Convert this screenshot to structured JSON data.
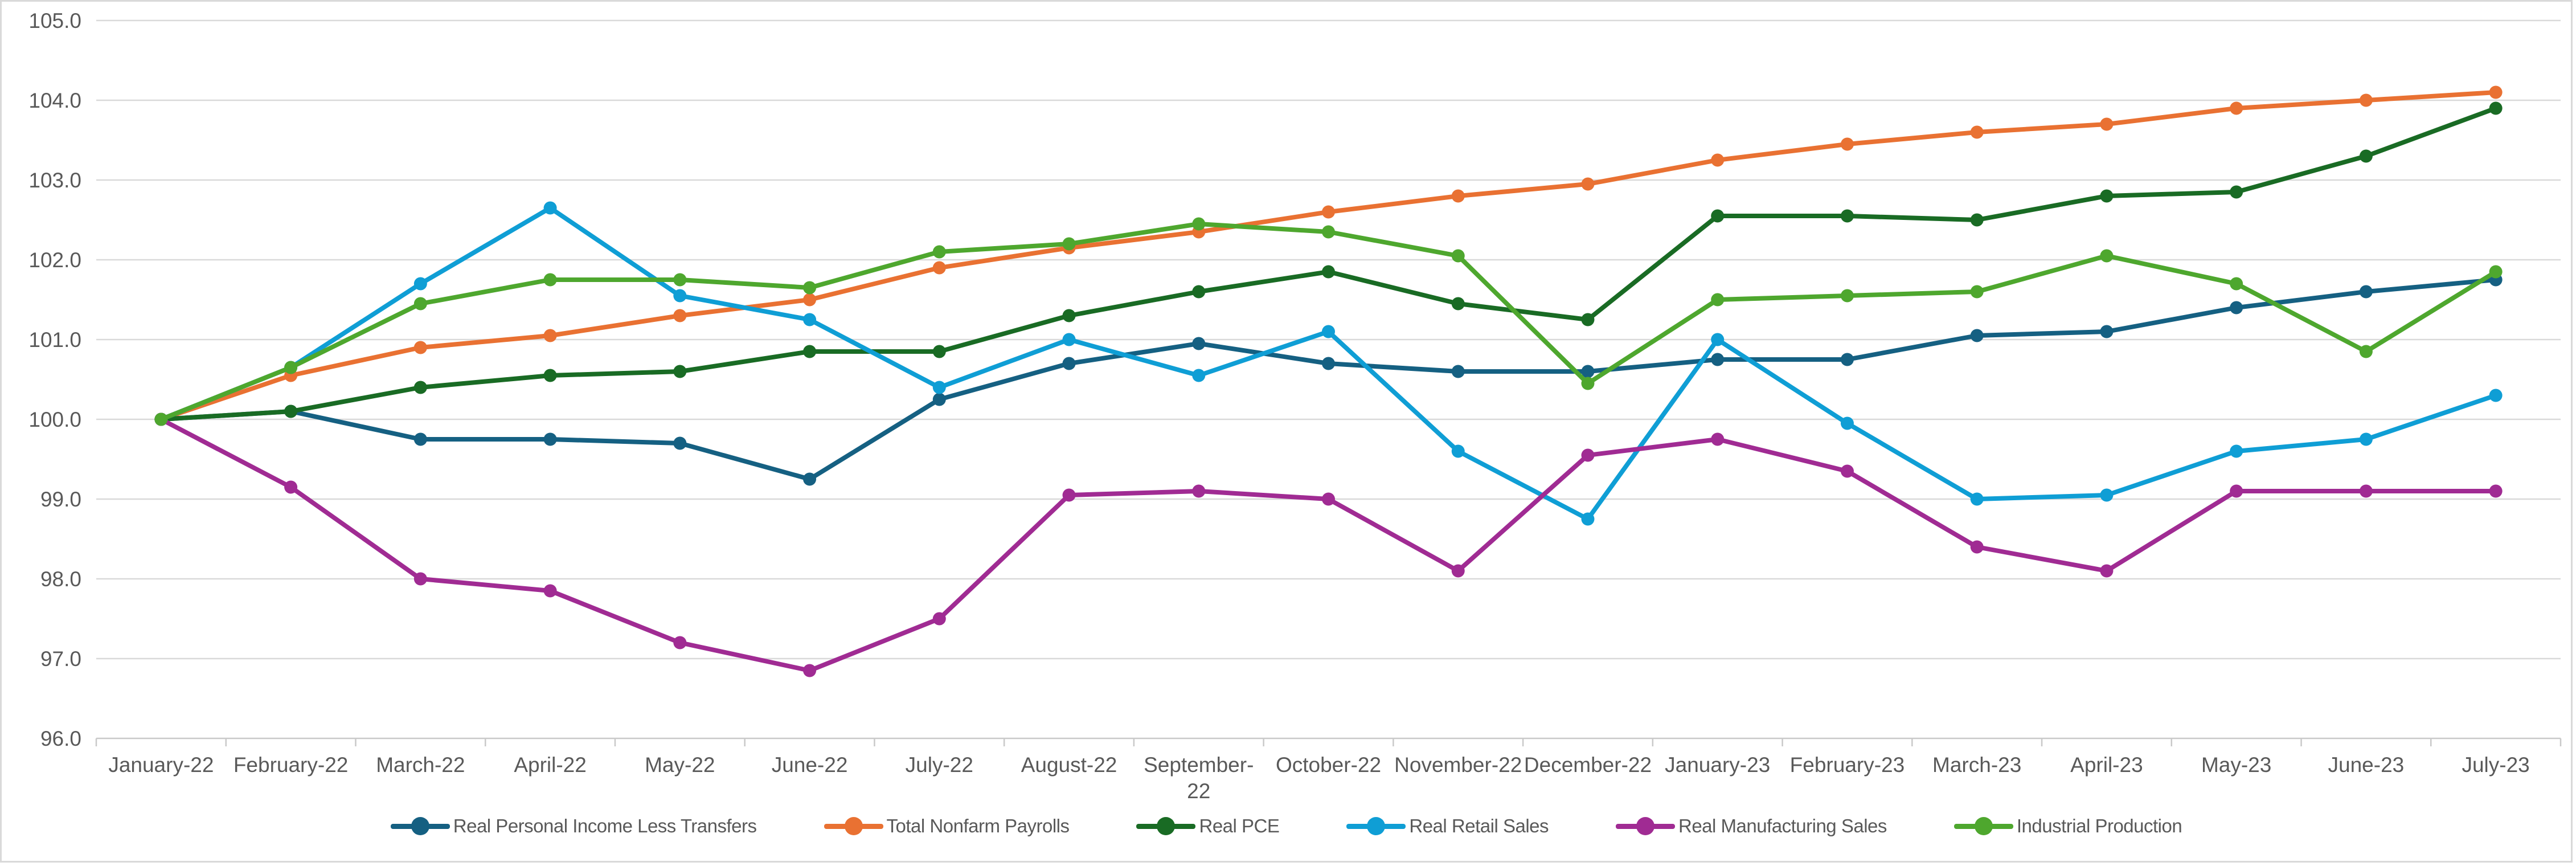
{
  "chart_data": {
    "type": "line",
    "title": "",
    "categories": [
      "January-22",
      "February-22",
      "March-22",
      "April-22",
      "May-22",
      "June-22",
      "July-22",
      "August-22",
      "September-22",
      "October-22",
      "November-22",
      "December-22",
      "January-23",
      "February-23",
      "March-23",
      "April-23",
      "May-23",
      "June-23",
      "July-23"
    ],
    "series": [
      {
        "name": "Real Personal Income Less Transfers",
        "color": "#156082",
        "values": [
          100.0,
          100.1,
          99.75,
          99.75,
          99.7,
          99.25,
          100.25,
          100.7,
          100.95,
          100.7,
          100.6,
          100.6,
          100.75,
          100.75,
          101.05,
          101.1,
          101.4,
          101.6,
          101.75
        ]
      },
      {
        "name": "Total Nonfarm Payrolls",
        "color": "#E97132",
        "values": [
          100.0,
          100.55,
          100.9,
          101.05,
          101.3,
          101.5,
          101.9,
          102.15,
          102.35,
          102.6,
          102.8,
          102.95,
          103.25,
          103.45,
          103.6,
          103.7,
          103.9,
          104.0,
          104.1
        ]
      },
      {
        "name": "Real PCE",
        "color": "#196B24",
        "values": [
          100.0,
          100.1,
          100.4,
          100.55,
          100.6,
          100.85,
          100.85,
          101.3,
          101.6,
          101.85,
          101.45,
          101.25,
          102.55,
          102.55,
          102.5,
          102.8,
          102.85,
          103.3,
          103.9
        ]
      },
      {
        "name": "Real Retail Sales",
        "color": "#0F9ED5",
        "values": [
          100.0,
          100.65,
          101.7,
          102.65,
          101.55,
          101.25,
          100.4,
          101.0,
          100.55,
          101.1,
          99.6,
          98.75,
          101.0,
          99.95,
          99.0,
          99.05,
          99.6,
          99.75,
          100.3
        ]
      },
      {
        "name": "Real Manufacturing Sales",
        "color": "#A02B93",
        "values": [
          100.0,
          99.15,
          98.0,
          97.85,
          97.2,
          96.85,
          97.5,
          99.05,
          99.1,
          99.0,
          98.1,
          99.55,
          99.75,
          99.35,
          98.4,
          98.1,
          99.1,
          99.1,
          99.1
        ]
      },
      {
        "name": "Industrial Production",
        "color": "#4EA72E",
        "values": [
          100.0,
          100.65,
          101.45,
          101.75,
          101.75,
          101.65,
          102.1,
          102.2,
          102.45,
          102.35,
          102.05,
          100.45,
          101.5,
          101.55,
          101.6,
          102.05,
          101.7,
          100.85,
          101.85
        ]
      }
    ],
    "y_axis": {
      "min": 96.0,
      "max": 105.0,
      "step": 1.0,
      "tick_labels": [
        "96.0",
        "97.0",
        "98.0",
        "99.0",
        "100.0",
        "101.0",
        "102.0",
        "103.0",
        "104.0",
        "105.0"
      ]
    },
    "legend_position": "bottom",
    "grid": "horizontal",
    "style": {
      "background": "#FFFFFF",
      "gridline_color": "#D9D9D9",
      "axis_line_color": "#C9C9C9",
      "axis_label_color": "#595959",
      "frame_border_color": "#D9D9D9"
    }
  }
}
